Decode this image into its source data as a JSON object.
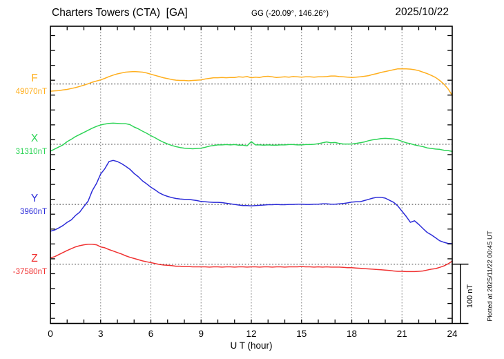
{
  "header": {
    "station_title": "Charters Towers (CTA)  [GA]",
    "coords": "GG (-20.09°, 146.26°)",
    "date": "2025/10/22"
  },
  "traces": [
    {
      "label": "F",
      "baseline_label": "49070nT",
      "baseline_nT": 49070,
      "color": "#FFAF1E"
    },
    {
      "label": "X",
      "baseline_label": "31310nT",
      "baseline_nT": 31310,
      "color": "#2ED457"
    },
    {
      "label": "Y",
      "baseline_label": "3960nT",
      "baseline_nT": 3960,
      "color": "#2C2CD8"
    },
    {
      "label": "Z",
      "baseline_label": "-37580nT",
      "baseline_nT": -37580,
      "color": "#F03232"
    }
  ],
  "x_axis": {
    "label": "U T (hour)",
    "ticks": [
      "0",
      "3",
      "6",
      "9",
      "12",
      "15",
      "18",
      "21",
      "24"
    ],
    "range_hours": [
      0,
      24
    ]
  },
  "scale_bar": {
    "label": "100 nT",
    "nT": 100
  },
  "footer_note": "Plotted at 2025/11/22 00:45 UT",
  "chart_data": {
    "type": "line",
    "title": "Magnetogram Charters Towers (CTA) [GA] 2025/10/22",
    "xlabel": "U T (hour)",
    "x_range": [
      0,
      24
    ],
    "x_start_hours": 0,
    "x_step_hours": 0.25,
    "offset_unit": "nT (deviation from each component baseline)",
    "grid": "dotted vertical every 3 h, dotted baseline per component",
    "legend_position": "left margin (component letter + baseline value)",
    "minor_tick_nT": 25,
    "series": [
      {
        "name": "F",
        "baseline_nT": 49070,
        "offsets_nT": [
          -12,
          -11.5,
          -11,
          -10,
          -9,
          -7.5,
          -6,
          -4,
          -2,
          0.5,
          3,
          5,
          7,
          9.5,
          12.5,
          15,
          17,
          18.5,
          20,
          20.5,
          21,
          20.5,
          20,
          18.5,
          16.5,
          14.5,
          12.5,
          10.5,
          9,
          7.5,
          6.5,
          6,
          6,
          5.5,
          6,
          6.5,
          7,
          8.5,
          9.5,
          10.5,
          10.5,
          11,
          10.5,
          11,
          11,
          12,
          11.5,
          12.5,
          10.5,
          11.5,
          11,
          12.5,
          13,
          12,
          11,
          11.5,
          12,
          11.5,
          12.5,
          12,
          11.5,
          12,
          12,
          11.5,
          12,
          12,
          12.5,
          13.5,
          13.5,
          12.5,
          12,
          11.5,
          11,
          11.5,
          12,
          13,
          14,
          16,
          17.5,
          19.5,
          21,
          22.5,
          24,
          25.5,
          25.5,
          25.5,
          25,
          24,
          22.5,
          20,
          17.5,
          14.5,
          11,
          6,
          0,
          -8,
          -19
        ]
      },
      {
        "name": "X",
        "baseline_nT": 31310,
        "offsets_nT": [
          -11.5,
          -8,
          -4.5,
          -1,
          4.5,
          8.5,
          13,
          16.5,
          20,
          23.5,
          27,
          30,
          32.5,
          34,
          35,
          35.5,
          35,
          34.5,
          34.5,
          33,
          29,
          26,
          22,
          18.5,
          14.5,
          11,
          7,
          3.5,
          0.5,
          -2,
          -4,
          -5.5,
          -6.5,
          -7,
          -7.5,
          -7,
          -6.5,
          -5,
          -3,
          -2,
          -1,
          -1,
          -0.5,
          -1,
          -0.5,
          -1.5,
          -1.5,
          -2.5,
          4.5,
          -1,
          -1,
          -1.5,
          -1,
          -1.5,
          -1.5,
          -1,
          -1,
          -0.5,
          -0.5,
          -1,
          -1,
          -0.5,
          -0.5,
          0,
          1,
          2.5,
          4,
          2.5,
          3,
          1.5,
          0.5,
          0.5,
          0.5,
          1.5,
          2.5,
          4,
          6,
          7.5,
          8.5,
          9.5,
          10,
          9.5,
          9,
          7.5,
          5,
          2.5,
          1,
          -1,
          -2.5,
          -4,
          -6,
          -7,
          -8,
          -8.5,
          -10,
          -10.5,
          -12
        ]
      },
      {
        "name": "Y",
        "baseline_nT": 3960,
        "offsets_nT": [
          -45,
          -43,
          -39.5,
          -35.5,
          -30,
          -26,
          -18.5,
          -13,
          -3.5,
          5.5,
          23,
          35,
          51,
          60,
          72,
          74,
          72,
          68.5,
          64,
          59,
          52,
          46.5,
          39.5,
          34.5,
          29,
          24.5,
          19.5,
          16,
          13.5,
          11.5,
          10,
          9,
          8.5,
          8.5,
          7.5,
          6.5,
          5,
          4.5,
          4,
          3.5,
          3.5,
          3,
          2,
          1,
          0,
          -1,
          -2,
          -2,
          -2.5,
          -2,
          -1.5,
          -1,
          -0.5,
          -0.5,
          0,
          -0.5,
          -0.5,
          0,
          0,
          0.5,
          0.5,
          0,
          0,
          0.5,
          0.5,
          1,
          1,
          0.5,
          0.5,
          1,
          1.5,
          2.5,
          4,
          4.5,
          4.5,
          6.5,
          8.5,
          10.5,
          12,
          12,
          10.5,
          7,
          3.5,
          -2.5,
          -11.5,
          -20,
          -30,
          -27.5,
          -33.5,
          -40.5,
          -47,
          -51,
          -56,
          -61,
          -63.5,
          -65.5,
          -66
        ]
      },
      {
        "name": "Z",
        "baseline_nT": -37580,
        "offsets_nT": [
          10.5,
          12.5,
          16,
          19.5,
          23,
          26,
          29,
          31,
          32.5,
          33.5,
          33.5,
          32.5,
          29,
          27.5,
          24.5,
          22,
          19.5,
          17,
          14,
          11.5,
          9.5,
          7.5,
          5.5,
          4,
          2.5,
          1,
          -0.5,
          -1.5,
          -2,
          -2.5,
          -3.5,
          -3.5,
          -4,
          -4,
          -4.5,
          -4.5,
          -4.5,
          -4.5,
          -5,
          -4.5,
          -4.5,
          -5,
          -4.5,
          -4.5,
          -5,
          -4.5,
          -4.5,
          -5,
          -4.5,
          -4.5,
          -5,
          -4.5,
          -4.5,
          -5,
          -4.5,
          -4.5,
          -5,
          -4.5,
          -4.5,
          -4.5,
          -4,
          -4.5,
          -4.5,
          -5,
          -4.5,
          -5,
          -4.5,
          -5,
          -5,
          -5,
          -5.5,
          -6,
          -6,
          -6.5,
          -7,
          -7.5,
          -8,
          -8.5,
          -9,
          -9.5,
          -10,
          -10.5,
          -11.5,
          -12,
          -12,
          -12.5,
          -12.5,
          -12.5,
          -12,
          -11.5,
          -10,
          -8.5,
          -7.5,
          -5.5,
          -3,
          0.5,
          5
        ]
      }
    ]
  }
}
